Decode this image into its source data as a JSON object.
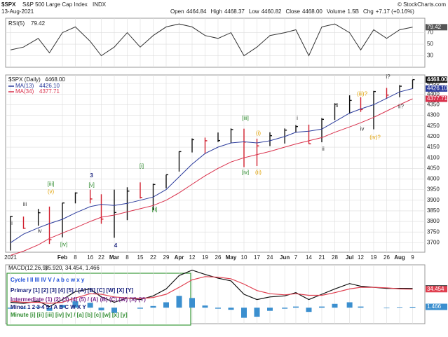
{
  "header": {
    "title": "$SPX",
    "subtitle": "S&P 500 Large Cap Index",
    "exchange": "INDX",
    "date": "13-Aug-2021",
    "credit": "© StockCharts.com",
    "quote": [
      {
        "label": "Open",
        "value": "4464.84"
      },
      {
        "label": "High",
        "value": "4468.37"
      },
      {
        "label": "Low",
        "value": "4460.82"
      },
      {
        "label": "Close",
        "value": "4468.00"
      },
      {
        "label": "Volume",
        "value": "1.5B"
      },
      {
        "label": "Chg",
        "value": "+7.17 (+0.16%)"
      }
    ]
  },
  "chart_data": [
    {
      "type": "line",
      "ylim": [
        10,
        95
      ],
      "yticks": [
        30,
        50,
        70
      ],
      "grid": true,
      "series": [
        {
          "name": "RSI(5)",
          "color": "#333333",
          "label": "79.42",
          "values": [
            40,
            45,
            60,
            35,
            70,
            80,
            55,
            30,
            45,
            70,
            45,
            65,
            80,
            85,
            80,
            65,
            60,
            70,
            30,
            45,
            65,
            70,
            75,
            30,
            80,
            85,
            70,
            40,
            75,
            60,
            75,
            79.42
          ]
        }
      ]
    },
    {
      "type": "ohlc",
      "title": "$SPX (Daily)",
      "label": "4468.00",
      "ylim": [
        3655,
        4490
      ],
      "yticks": [
        3700,
        3750,
        3800,
        3850,
        3900,
        3950,
        4000,
        4050,
        4100,
        4150,
        4200,
        4250,
        4300,
        4350,
        4400,
        4450
      ],
      "grid": true,
      "x": [
        "2021-01-04",
        "2021-01-11",
        "2021-01-19",
        "2021-01-25",
        "2021-02-01",
        "2021-02-08",
        "2021-02-16",
        "2021-02-22",
        "2021-03-01",
        "2021-03-08",
        "2021-03-15",
        "2021-03-22",
        "2021-03-29",
        "2021-04-05",
        "2021-04-12",
        "2021-04-19",
        "2021-04-26",
        "2021-05-03",
        "2021-05-10",
        "2021-05-17",
        "2021-05-24",
        "2021-06-01",
        "2021-06-07",
        "2021-06-14",
        "2021-06-21",
        "2021-06-28",
        "2021-07-06",
        "2021-07-12",
        "2021-07-19",
        "2021-07-26",
        "2021-08-02",
        "2021-08-09"
      ],
      "high": [
        3826,
        3823,
        3859,
        3870,
        3888,
        3937,
        3950,
        3928,
        3950,
        3961,
        3984,
        3978,
        4020,
        4130,
        4191,
        4195,
        4219,
        4238,
        4237,
        4190,
        4220,
        4238,
        4254,
        4256,
        4287,
        4356,
        4394,
        4385,
        4415,
        4429,
        4442,
        4468
      ],
      "low": [
        3663,
        3765,
        3780,
        3694,
        3725,
        3885,
        3885,
        3789,
        3723,
        3806,
        3908,
        3853,
        3956,
        4035,
        4125,
        4118,
        4174,
        4168,
        4056,
        4061,
        4155,
        4167,
        4218,
        4165,
        4173,
        4278,
        4307,
        4316,
        4234,
        4378,
        4385,
        4425
      ],
      "close": [
        3824,
        3768,
        3841,
        3714,
        3887,
        3934,
        3906,
        3811,
        3842,
        3943,
        3913,
        3974,
        4020,
        4129,
        4185,
        4180,
        4181,
        4233,
        4174,
        4156,
        4204,
        4230,
        4247,
        4166,
        4281,
        4352,
        4370,
        4327,
        4412,
        4395,
        4437,
        4468
      ],
      "series": [
        {
          "name": "MA(13)",
          "color": "#2b3b9c",
          "label": "4426.10",
          "values": [
            3700,
            3740,
            3770,
            3790,
            3810,
            3840,
            3870,
            3880,
            3875,
            3885,
            3900,
            3915,
            3950,
            4010,
            4070,
            4120,
            4150,
            4170,
            4175,
            4170,
            4180,
            4200,
            4220,
            4225,
            4235,
            4270,
            4310,
            4330,
            4350,
            4380,
            4410,
            4426.1
          ]
        },
        {
          "name": "MA(34)",
          "color": "#d9304b",
          "label": "4377.71",
          "values": [
            3640,
            3660,
            3690,
            3720,
            3745,
            3770,
            3800,
            3820,
            3830,
            3845,
            3860,
            3875,
            3900,
            3935,
            3975,
            4015,
            4050,
            4080,
            4100,
            4115,
            4130,
            4150,
            4165,
            4180,
            4195,
            4220,
            4245,
            4265,
            4290,
            4320,
            4350,
            4377.71
          ]
        }
      ],
      "xticks": [
        {
          "value": "2021-01-04",
          "label": "2021"
        },
        {
          "value": "2021-02-01",
          "label": "Feb"
        },
        {
          "value": "2021-02-08",
          "label": "8"
        },
        {
          "value": "2021-02-16",
          "label": "16"
        },
        {
          "value": "2021-02-22",
          "label": "22"
        },
        {
          "value": "2021-03-01",
          "label": "Mar"
        },
        {
          "value": "2021-03-08",
          "label": "8"
        },
        {
          "value": "2021-03-15",
          "label": "15"
        },
        {
          "value": "2021-03-22",
          "label": "22"
        },
        {
          "value": "2021-03-29",
          "label": "29"
        },
        {
          "value": "2021-04-05",
          "label": "Apr"
        },
        {
          "value": "2021-04-12",
          "label": "12"
        },
        {
          "value": "2021-04-19",
          "label": "19"
        },
        {
          "value": "2021-04-26",
          "label": "26"
        },
        {
          "value": "2021-05-03",
          "label": "May"
        },
        {
          "value": "2021-05-10",
          "label": "10"
        },
        {
          "value": "2021-05-17",
          "label": "17"
        },
        {
          "value": "2021-05-24",
          "label": "24"
        },
        {
          "value": "2021-06-01",
          "label": "Jun"
        },
        {
          "value": "2021-06-07",
          "label": "7"
        },
        {
          "value": "2021-06-14",
          "label": "14"
        },
        {
          "value": "2021-06-21",
          "label": "21"
        },
        {
          "value": "2021-06-28",
          "label": "28"
        },
        {
          "value": "2021-07-06",
          "label": "Jul"
        },
        {
          "value": "2021-07-12",
          "label": "12"
        },
        {
          "value": "2021-07-19",
          "label": "19"
        },
        {
          "value": "2021-07-26",
          "label": "26"
        },
        {
          "value": "2021-08-02",
          "label": "Aug"
        },
        {
          "value": "2021-08-09",
          "label": "9"
        }
      ],
      "annotations": [
        {
          "text": "i",
          "x": "2021-01-04",
          "y": 3790,
          "color": "#333333"
        },
        {
          "text": "iii",
          "x": "2021-01-11",
          "y": 3880,
          "color": "#333333"
        },
        {
          "text": "iv",
          "x": "2021-01-19",
          "y": 3755,
          "color": "#333333"
        },
        {
          "text": "[iii]",
          "x": "2021-01-25",
          "y": 3975,
          "color": "#2e8b2e"
        },
        {
          "text": "(v)",
          "x": "2021-01-25",
          "y": 3940,
          "color": "#e0a000"
        },
        {
          "text": "[iv]",
          "x": "2021-02-01",
          "y": 3690,
          "color": "#2e8b2e"
        },
        {
          "text": "3",
          "x": "2021-02-16",
          "y": 4015,
          "color": "#1a237e"
        },
        {
          "text": "[v]",
          "x": "2021-02-16",
          "y": 3970,
          "color": "#2e8b2e"
        },
        {
          "text": "4",
          "x": "2021-03-01",
          "y": 3685,
          "color": "#1a237e"
        },
        {
          "text": "[i]",
          "x": "2021-03-15",
          "y": 4060,
          "color": "#2e8b2e"
        },
        {
          "text": "[ii]",
          "x": "2021-03-22",
          "y": 3855,
          "color": "#2e8b2e"
        },
        {
          "text": "[iii]",
          "x": "2021-05-10",
          "y": 4285,
          "color": "#2e8b2e"
        },
        {
          "text": "[iv]",
          "x": "2021-05-10",
          "y": 4030,
          "color": "#2e8b2e"
        },
        {
          "text": "(i)",
          "x": "2021-05-17",
          "y": 4215,
          "color": "#e0a000"
        },
        {
          "text": "(ii)",
          "x": "2021-05-17",
          "y": 4030,
          "color": "#e0a000"
        },
        {
          "text": "i",
          "x": "2021-06-07",
          "y": 4285,
          "color": "#333333"
        },
        {
          "text": "ii",
          "x": "2021-06-21",
          "y": 4140,
          "color": "#333333"
        },
        {
          "text": "iii",
          "x": "2021-06-28",
          "y": 4345,
          "color": "#333333"
        },
        {
          "text": "(iii)?",
          "x": "2021-07-12",
          "y": 4400,
          "color": "#e0a000"
        },
        {
          "text": "iv",
          "x": "2021-07-12",
          "y": 4235,
          "color": "#333333"
        },
        {
          "text": "(iv)?",
          "x": "2021-07-19",
          "y": 4195,
          "color": "#e0a000"
        },
        {
          "text": "i?",
          "x": "2021-07-26",
          "y": 4480,
          "color": "#333333"
        },
        {
          "text": "ii?",
          "x": "2021-08-02",
          "y": 4340,
          "color": "#333333"
        }
      ]
    },
    {
      "type": "macd",
      "title": "MACD(12,26,9)",
      "label": "35.920, 34.454, 1.466",
      "ylim": [
        -30,
        80
      ],
      "series": [
        {
          "name": "MACD",
          "kind": "line",
          "color": "#111111",
          "label": "35.920",
          "values": [
            10,
            8,
            12,
            2,
            15,
            30,
            35,
            20,
            10,
            18,
            15,
            22,
            35,
            60,
            70,
            62,
            55,
            50,
            25,
            15,
            20,
            22,
            28,
            15,
            25,
            35,
            45,
            40,
            38,
            36,
            36,
            35.92
          ]
        },
        {
          "name": "Signal",
          "kind": "line",
          "color": "#e04050",
          "label": "34.454",
          "values": [
            12,
            10,
            10,
            8,
            10,
            18,
            26,
            25,
            20,
            18,
            17,
            19,
            25,
            38,
            52,
            58,
            57,
            54,
            44,
            32,
            26,
            24,
            26,
            23,
            23,
            28,
            35,
            38,
            38,
            37,
            35,
            34.454
          ]
        },
        {
          "name": "Histogram",
          "kind": "histogram",
          "color": "#3b8fcf",
          "label": "1.466",
          "values": [
            -2,
            -2,
            2,
            -6,
            5,
            12,
            9,
            -5,
            -10,
            0,
            -2,
            3,
            10,
            22,
            18,
            4,
            -2,
            -4,
            -19,
            -17,
            -6,
            -2,
            2,
            -8,
            2,
            7,
            10,
            2,
            0,
            -1,
            1,
            1.466
          ]
        }
      ]
    }
  ],
  "wave_legend": [
    {
      "text": "Cycle I II III IV V / a b c w x y",
      "color": "#1e4fd8"
    },
    {
      "text": "Primary [1] [2] [3] [4] [5] / [A] [B] [C] [W] [X] [Y]",
      "color": "#1a237e"
    },
    {
      "text": "Intermediate (1) (2) (3) (4) (5) / (A) (B) (C) (W) (X) (Y)",
      "color": "#7b2a8c"
    },
    {
      "text": "Minor 1 2 3 4 5 / A B C W X Y",
      "color": "#1a237e"
    },
    {
      "text": "Minute [i] [ii] [iii] [iv] [v] / [a] [b] [c] [w] [x] [y]",
      "color": "#2e8b2e"
    }
  ]
}
